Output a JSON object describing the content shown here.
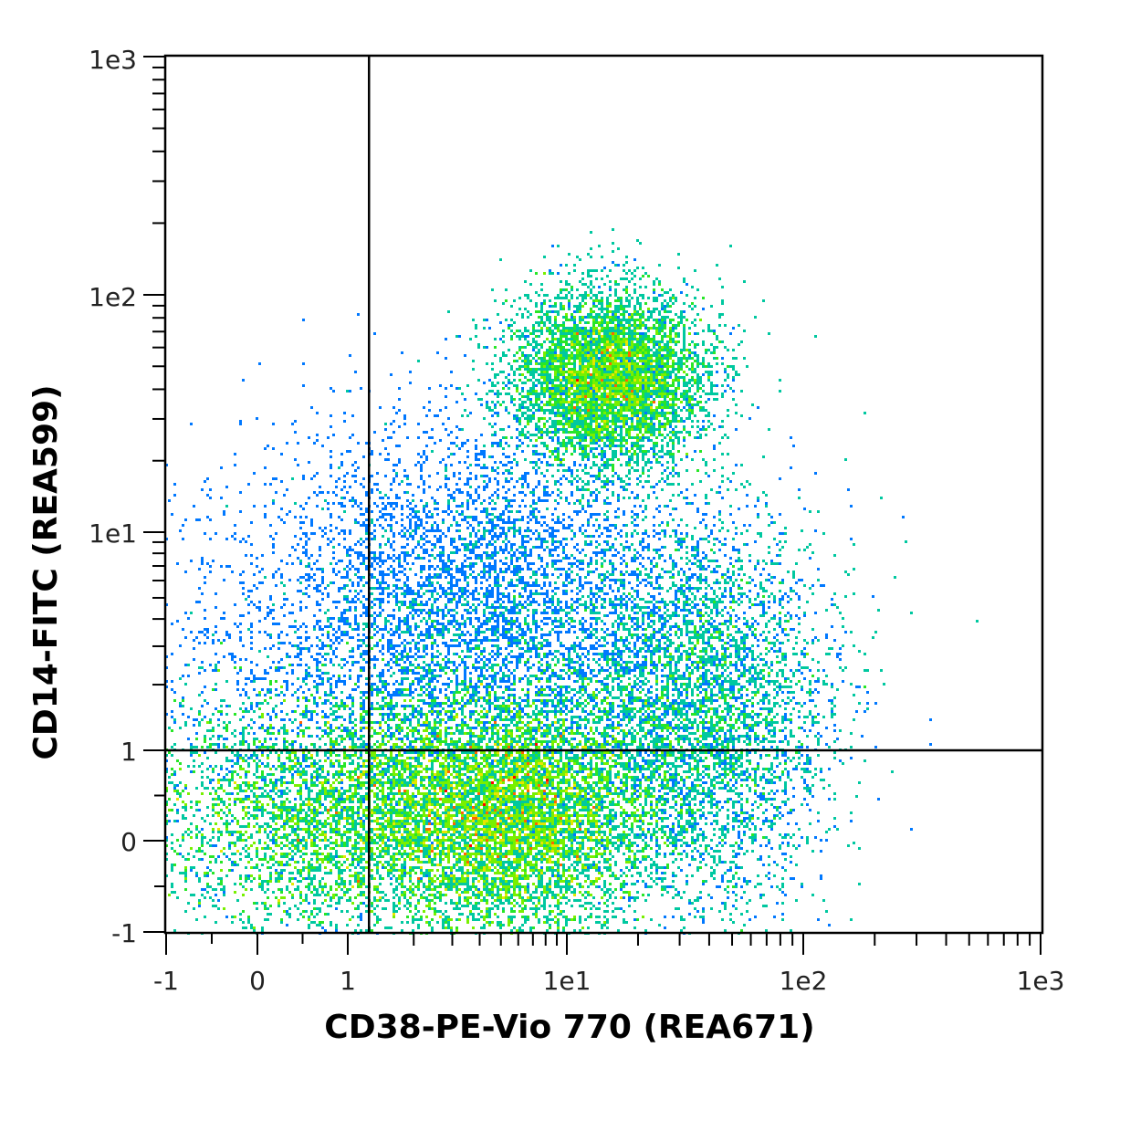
{
  "chart_data": {
    "type": "scatter",
    "subtype": "flow-cytometry density dot plot (pseudocolor)",
    "xlabel": "CD38-PE-Vio 770 (REA671)",
    "ylabel": "CD14-FITC (REA599)",
    "x_scale": "biexponential",
    "y_scale": "biexponential",
    "xlim": [
      -1,
      1000
    ],
    "ylim": [
      -1,
      1000
    ],
    "x_tick_labels": [
      "-1",
      "0",
      "1",
      "1e1",
      "1e2",
      "1e3"
    ],
    "y_tick_labels": [
      "1e3",
      "1e2",
      "1e1",
      "1",
      "0",
      "-1"
    ],
    "quadrant_gates": {
      "x": 1.25,
      "y": 1.0
    },
    "density_colormap": [
      "#0000ff",
      "#0078ff",
      "#00c8a0",
      "#28e628",
      "#78f000",
      "#e6e600",
      "#ff6400",
      "#ff0000"
    ],
    "populations": [
      {
        "x": 15,
        "y": 45,
        "spread_x": 0.22,
        "spread_y": 0.2,
        "density": "very high",
        "count_fraction": 0.2
      },
      {
        "x": 1.2,
        "y": 0.3,
        "spread_x": 0.5,
        "spread_y": 0.28,
        "density": "very high",
        "count_fraction": 0.28
      },
      {
        "x": 6,
        "y": 0.3,
        "spread_x": 0.3,
        "spread_y": 0.28,
        "density": "high",
        "count_fraction": 0.27
      },
      {
        "x": 35,
        "y": 1.5,
        "spread_x": 0.3,
        "spread_y": 0.45,
        "density": "medium",
        "count_fraction": 0.14
      },
      {
        "x": 4,
        "y": 5,
        "spread_x": 0.45,
        "spread_y": 0.4,
        "density": "sparse",
        "count_fraction": 0.08
      },
      {
        "x": 1,
        "y": 2,
        "spread_x": 0.6,
        "spread_y": 0.5,
        "density": "sparse",
        "count_fraction": 0.03
      }
    ]
  }
}
